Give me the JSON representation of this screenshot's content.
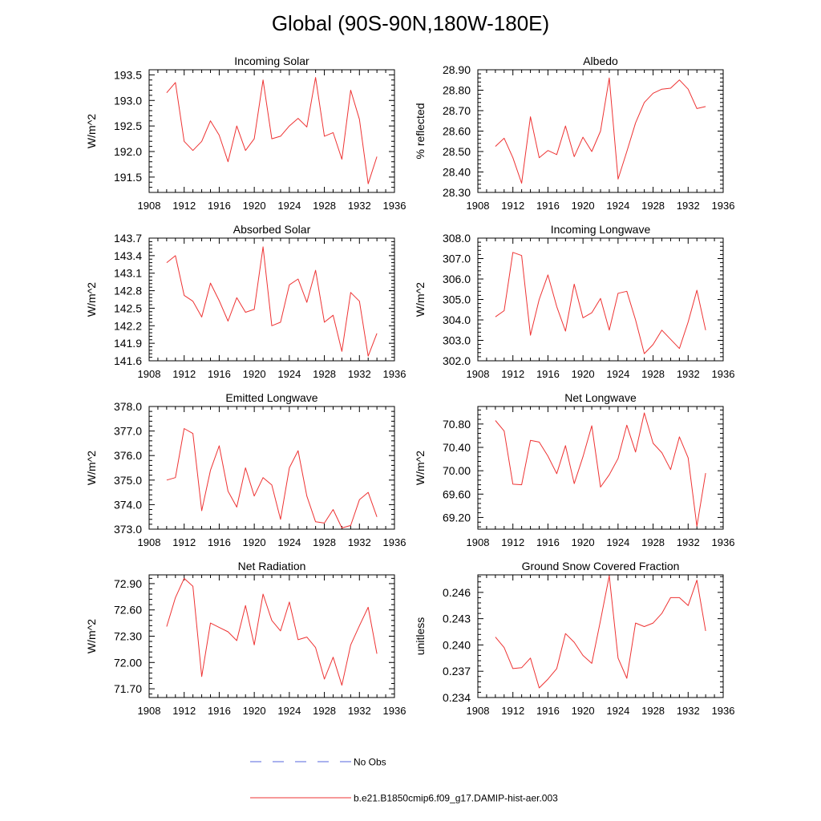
{
  "title": "Global (90S-90N,180W-180E)",
  "legend": [
    {
      "label": "No Obs",
      "color": "#5566dd",
      "style": "dashed"
    },
    {
      "label": "b.e21.B1850cmip6.f09_g17.DAMIP-hist-aer.003",
      "color": "#ee3333",
      "style": "solid"
    }
  ],
  "chart_data": [
    {
      "type": "line",
      "title": "Incoming Solar",
      "ylabel": "W/m^2",
      "xlim": [
        1908,
        1936
      ],
      "xticks": [
        1908,
        1912,
        1916,
        1920,
        1924,
        1928,
        1932,
        1936
      ],
      "ylim": [
        191.2,
        193.6
      ],
      "yticks": [
        191.5,
        192.0,
        192.5,
        193.0,
        193.5
      ],
      "ytick_labels": [
        "191.5",
        "192.0",
        "192.5",
        "193.0",
        "193.5"
      ],
      "x": [
        1910,
        1911,
        1912,
        1913,
        1914,
        1915,
        1916,
        1917,
        1918,
        1919,
        1920,
        1921,
        1922,
        1923,
        1924,
        1925,
        1926,
        1927,
        1928,
        1929,
        1930,
        1931,
        1932,
        1933,
        1934
      ],
      "series": [
        {
          "values": [
            193.15,
            193.35,
            192.2,
            192.02,
            192.2,
            192.6,
            192.32,
            191.8,
            192.5,
            192.02,
            192.25,
            193.4,
            192.25,
            192.3,
            192.5,
            192.65,
            192.48,
            193.45,
            192.3,
            192.37,
            191.85,
            193.2,
            192.63,
            191.37,
            191.9
          ]
        }
      ]
    },
    {
      "type": "line",
      "title": "Albedo",
      "ylabel": "% reflected",
      "xlim": [
        1908,
        1936
      ],
      "xticks": [
        1908,
        1912,
        1916,
        1920,
        1924,
        1928,
        1932,
        1936
      ],
      "ylim": [
        28.3,
        28.9
      ],
      "yticks": [
        28.3,
        28.4,
        28.5,
        28.6,
        28.7,
        28.8,
        28.9
      ],
      "ytick_labels": [
        "28.30",
        "28.40",
        "28.50",
        "28.60",
        "28.70",
        "28.80",
        "28.90"
      ],
      "x": [
        1910,
        1911,
        1912,
        1913,
        1914,
        1915,
        1916,
        1917,
        1918,
        1919,
        1920,
        1921,
        1922,
        1923,
        1924,
        1925,
        1926,
        1927,
        1928,
        1929,
        1930,
        1931,
        1932,
        1933,
        1934
      ],
      "series": [
        {
          "values": [
            28.525,
            28.565,
            28.47,
            28.345,
            28.67,
            28.47,
            28.505,
            28.485,
            28.625,
            28.475,
            28.57,
            28.5,
            28.6,
            28.86,
            28.365,
            28.5,
            28.64,
            28.74,
            28.785,
            28.805,
            28.81,
            28.85,
            28.805,
            28.71,
            28.72
          ]
        }
      ]
    },
    {
      "type": "line",
      "title": "Absorbed Solar",
      "ylabel": "W/m^2",
      "xlim": [
        1908,
        1936
      ],
      "xticks": [
        1908,
        1912,
        1916,
        1920,
        1924,
        1928,
        1932,
        1936
      ],
      "ylim": [
        141.6,
        143.7
      ],
      "yticks": [
        141.6,
        141.9,
        142.2,
        142.5,
        142.8,
        143.1,
        143.4,
        143.7
      ],
      "ytick_labels": [
        "141.6",
        "141.9",
        "142.2",
        "142.5",
        "142.8",
        "143.1",
        "143.4",
        "143.7"
      ],
      "x": [
        1910,
        1911,
        1912,
        1913,
        1914,
        1915,
        1916,
        1917,
        1918,
        1919,
        1920,
        1921,
        1922,
        1923,
        1924,
        1925,
        1926,
        1927,
        1928,
        1929,
        1930,
        1931,
        1932,
        1933,
        1934
      ],
      "series": [
        {
          "values": [
            143.28,
            143.4,
            142.72,
            142.62,
            142.35,
            142.93,
            142.63,
            142.28,
            142.68,
            142.43,
            142.48,
            143.55,
            142.2,
            142.26,
            142.9,
            143.0,
            142.6,
            143.15,
            142.26,
            142.38,
            141.76,
            142.77,
            142.62,
            141.68,
            142.07
          ]
        }
      ]
    },
    {
      "type": "line",
      "title": "Incoming Longwave",
      "ylabel": "W/m^2",
      "xlim": [
        1908,
        1936
      ],
      "xticks": [
        1908,
        1912,
        1916,
        1920,
        1924,
        1928,
        1932,
        1936
      ],
      "ylim": [
        302.0,
        308.0
      ],
      "yticks": [
        302.0,
        303.0,
        304.0,
        305.0,
        306.0,
        307.0,
        308.0
      ],
      "ytick_labels": [
        "302.0",
        "303.0",
        "304.0",
        "305.0",
        "306.0",
        "307.0",
        "308.0"
      ],
      "x": [
        1910,
        1911,
        1912,
        1913,
        1914,
        1915,
        1916,
        1917,
        1918,
        1919,
        1920,
        1921,
        1922,
        1923,
        1924,
        1925,
        1926,
        1927,
        1928,
        1929,
        1930,
        1931,
        1932,
        1933,
        1934
      ],
      "series": [
        {
          "values": [
            304.15,
            304.45,
            307.3,
            307.15,
            303.25,
            305.0,
            306.2,
            304.65,
            303.45,
            305.75,
            304.1,
            304.35,
            305.05,
            303.5,
            305.3,
            305.4,
            304.0,
            302.35,
            302.8,
            303.5,
            303.05,
            302.6,
            303.9,
            305.45,
            303.5
          ]
        }
      ]
    },
    {
      "type": "line",
      "title": "Emitted Longwave",
      "ylabel": "W/m^2",
      "xlim": [
        1908,
        1936
      ],
      "xticks": [
        1908,
        1912,
        1916,
        1920,
        1924,
        1928,
        1932,
        1936
      ],
      "ylim": [
        373.0,
        378.0
      ],
      "yticks": [
        373.0,
        374.0,
        375.0,
        376.0,
        377.0,
        378.0
      ],
      "ytick_labels": [
        "373.0",
        "374.0",
        "375.0",
        "376.0",
        "377.0",
        "378.0"
      ],
      "x": [
        1910,
        1911,
        1912,
        1913,
        1914,
        1915,
        1916,
        1917,
        1918,
        1919,
        1920,
        1921,
        1922,
        1923,
        1924,
        1925,
        1926,
        1927,
        1928,
        1929,
        1930,
        1931,
        1932,
        1933,
        1934
      ],
      "series": [
        {
          "values": [
            375.0,
            375.1,
            377.1,
            376.9,
            373.75,
            375.4,
            376.4,
            374.55,
            373.9,
            375.5,
            374.35,
            375.1,
            374.8,
            373.4,
            375.5,
            376.2,
            374.35,
            373.3,
            373.25,
            373.8,
            373.05,
            373.15,
            374.2,
            374.5,
            373.5
          ]
        }
      ]
    },
    {
      "type": "line",
      "title": "Net Longwave",
      "ylabel": "W/m^2",
      "xlim": [
        1908,
        1936
      ],
      "xticks": [
        1908,
        1912,
        1916,
        1920,
        1924,
        1928,
        1932,
        1936
      ],
      "ylim": [
        69.0,
        71.1
      ],
      "yticks": [
        69.2,
        69.6,
        70.0,
        70.4,
        70.8
      ],
      "ytick_labels": [
        "69.20",
        "69.60",
        "70.00",
        "70.40",
        "70.80"
      ],
      "x": [
        1910,
        1911,
        1912,
        1913,
        1914,
        1915,
        1916,
        1917,
        1918,
        1919,
        1920,
        1921,
        1922,
        1923,
        1924,
        1925,
        1926,
        1927,
        1928,
        1929,
        1930,
        1931,
        1932,
        1933,
        1934
      ],
      "series": [
        {
          "values": [
            70.86,
            70.68,
            69.77,
            69.76,
            70.52,
            70.49,
            70.25,
            69.95,
            70.43,
            69.78,
            70.24,
            70.77,
            69.72,
            69.93,
            70.21,
            70.78,
            70.32,
            70.99,
            70.47,
            70.31,
            70.02,
            70.58,
            70.22,
            69.05,
            69.96
          ]
        }
      ]
    },
    {
      "type": "line",
      "title": "Net Radiation",
      "ylabel": "W/m^2",
      "xlim": [
        1908,
        1936
      ],
      "xticks": [
        1908,
        1912,
        1916,
        1920,
        1924,
        1928,
        1932,
        1936
      ],
      "ylim": [
        71.6,
        73.0
      ],
      "yticks": [
        71.7,
        72.0,
        72.3,
        72.6,
        72.9
      ],
      "ytick_labels": [
        "71.70",
        "72.00",
        "72.30",
        "72.60",
        "72.90"
      ],
      "x": [
        1910,
        1911,
        1912,
        1913,
        1914,
        1915,
        1916,
        1917,
        1918,
        1919,
        1920,
        1921,
        1922,
        1923,
        1924,
        1925,
        1926,
        1927,
        1928,
        1929,
        1930,
        1931,
        1932,
        1933,
        1934
      ],
      "series": [
        {
          "values": [
            72.41,
            72.74,
            72.96,
            72.87,
            71.84,
            72.45,
            72.4,
            72.35,
            72.25,
            72.65,
            72.2,
            72.78,
            72.48,
            72.36,
            72.69,
            72.26,
            72.29,
            72.17,
            71.81,
            72.06,
            71.74,
            72.2,
            72.42,
            72.63,
            72.1
          ]
        }
      ]
    },
    {
      "type": "line",
      "title": "Ground Snow Covered Fraction",
      "ylabel": "unitless",
      "xlim": [
        1908,
        1936
      ],
      "xticks": [
        1908,
        1912,
        1916,
        1920,
        1924,
        1928,
        1932,
        1936
      ],
      "ylim": [
        0.234,
        0.248
      ],
      "yticks": [
        0.234,
        0.237,
        0.24,
        0.243,
        0.246
      ],
      "ytick_labels": [
        "0.234",
        "0.237",
        "0.240",
        "0.243",
        "0.246"
      ],
      "x": [
        1910,
        1911,
        1912,
        1913,
        1914,
        1915,
        1916,
        1917,
        1918,
        1919,
        1920,
        1921,
        1922,
        1923,
        1924,
        1925,
        1926,
        1927,
        1928,
        1929,
        1930,
        1931,
        1932,
        1933,
        1934
      ],
      "series": [
        {
          "values": [
            0.2409,
            0.2397,
            0.2373,
            0.2374,
            0.2385,
            0.2351,
            0.2361,
            0.2373,
            0.2413,
            0.2403,
            0.2388,
            0.2379,
            0.2428,
            0.2479,
            0.2385,
            0.2362,
            0.2425,
            0.2421,
            0.2425,
            0.2436,
            0.2454,
            0.2454,
            0.2445,
            0.2474,
            0.2416
          ]
        }
      ]
    }
  ]
}
